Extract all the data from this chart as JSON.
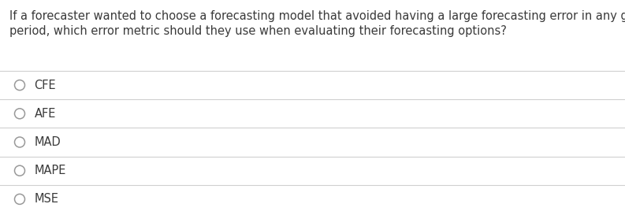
{
  "question_line1": "If a forecaster wanted to choose a forecasting model that avoided having a large forecasting error in any given",
  "question_line2": "period, which error metric should they use when evaluating their forecasting options?",
  "options": [
    "CFE",
    "AFE",
    "MAD",
    "MAPE",
    "MSE"
  ],
  "background_color": "#ffffff",
  "text_color": "#3a3a3a",
  "line_color": "#d0d0d0",
  "question_fontsize": 10.5,
  "option_fontsize": 10.5,
  "figwidth": 7.93,
  "figheight": 2.73,
  "dpi": 100
}
